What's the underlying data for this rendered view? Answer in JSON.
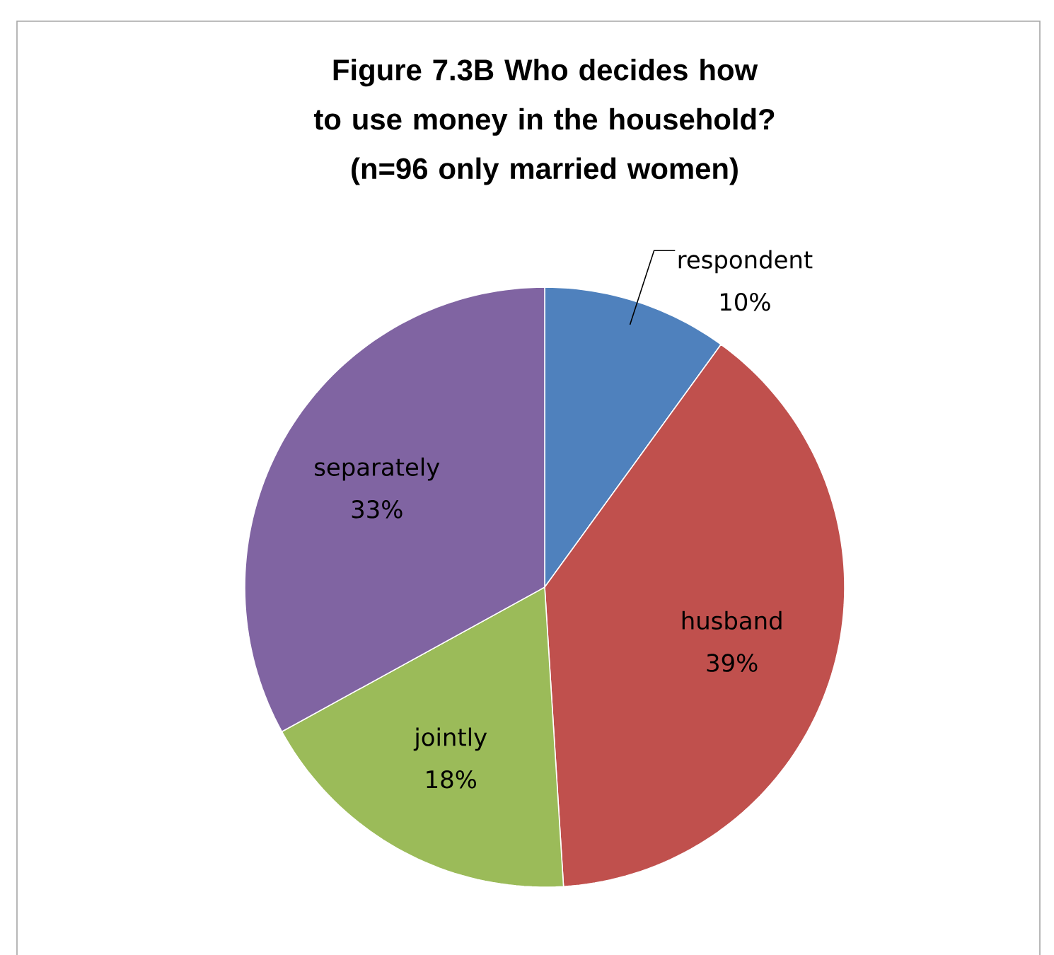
{
  "chart_data": {
    "type": "pie",
    "title": "Figure 7.3B Who decides how to use money in the household?",
    "subtitle": "(n=96 only married women)",
    "categories": [
      "respondent",
      "husband",
      "jointly",
      "separately"
    ],
    "values": [
      10,
      39,
      18,
      33
    ],
    "colors": [
      "#4f81bd",
      "#c0504d",
      "#9bbb59",
      "#8064a2"
    ],
    "value_labels": [
      "10%",
      "39%",
      "18%",
      "33%"
    ]
  }
}
